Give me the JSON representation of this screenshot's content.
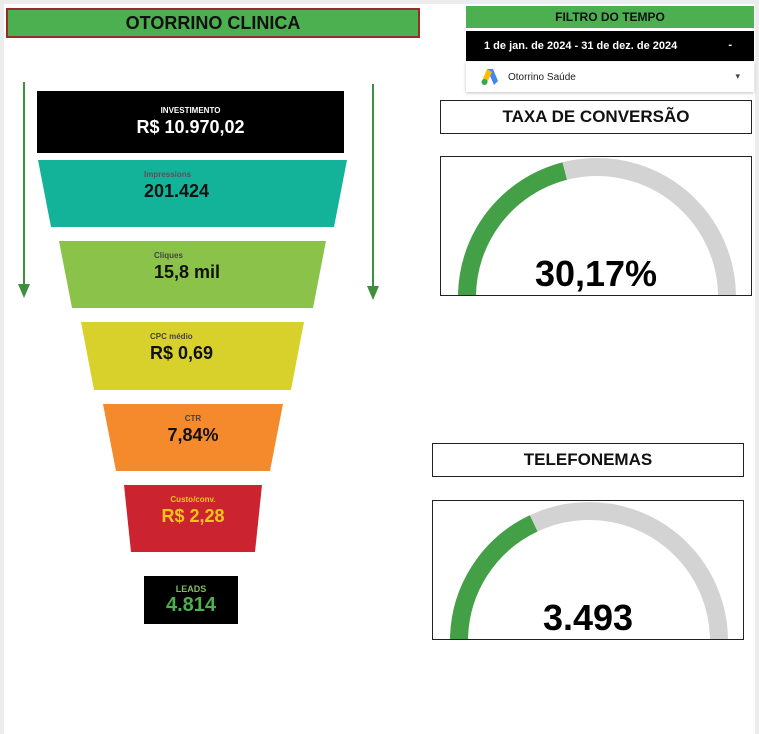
{
  "header": {
    "title": "OTORRINO CLINICA"
  },
  "filter": {
    "heading": "FILTRO DO TEMPO",
    "date_range": "1 de jan. de 2024 - 31 de dez. de 2024",
    "date_arrow": "-",
    "account_label": "Otorrino Saúde",
    "account_arrow": "▾",
    "account_icon": "google-ads-icon"
  },
  "funnel": {
    "investimento": {
      "label": "INVESTIMENTO",
      "value": "R$ 10.970,02",
      "color": "#000000"
    },
    "impressoes": {
      "label": "Impressions",
      "value": "201.424",
      "color": "#13b39a"
    },
    "cliques": {
      "label": "Cliques",
      "value": "15,8 mil",
      "color": "#8bc34a"
    },
    "cpc": {
      "label": "CPC médio",
      "value": "R$ 0,69",
      "color": "#d8d12c"
    },
    "ctr": {
      "label": "CTR",
      "value": "7,84%",
      "color": "#f58a2c"
    },
    "custo": {
      "label": "Custo/conv.",
      "value": "R$ 2,28",
      "color": "#cc2331"
    },
    "leads": {
      "label": "LEADS",
      "value": "4.814"
    }
  },
  "gauges": {
    "taxa": {
      "title": "TAXA DE CONVERSÃO",
      "value": "30,17%",
      "fraction": 0.42,
      "color": "#43a047",
      "track": "#d3d3d3"
    },
    "telefonemas": {
      "title": "TELEFONEMAS",
      "value": "3.493",
      "fraction": 0.36,
      "color": "#43a047",
      "track": "#d3d3d3"
    }
  }
}
